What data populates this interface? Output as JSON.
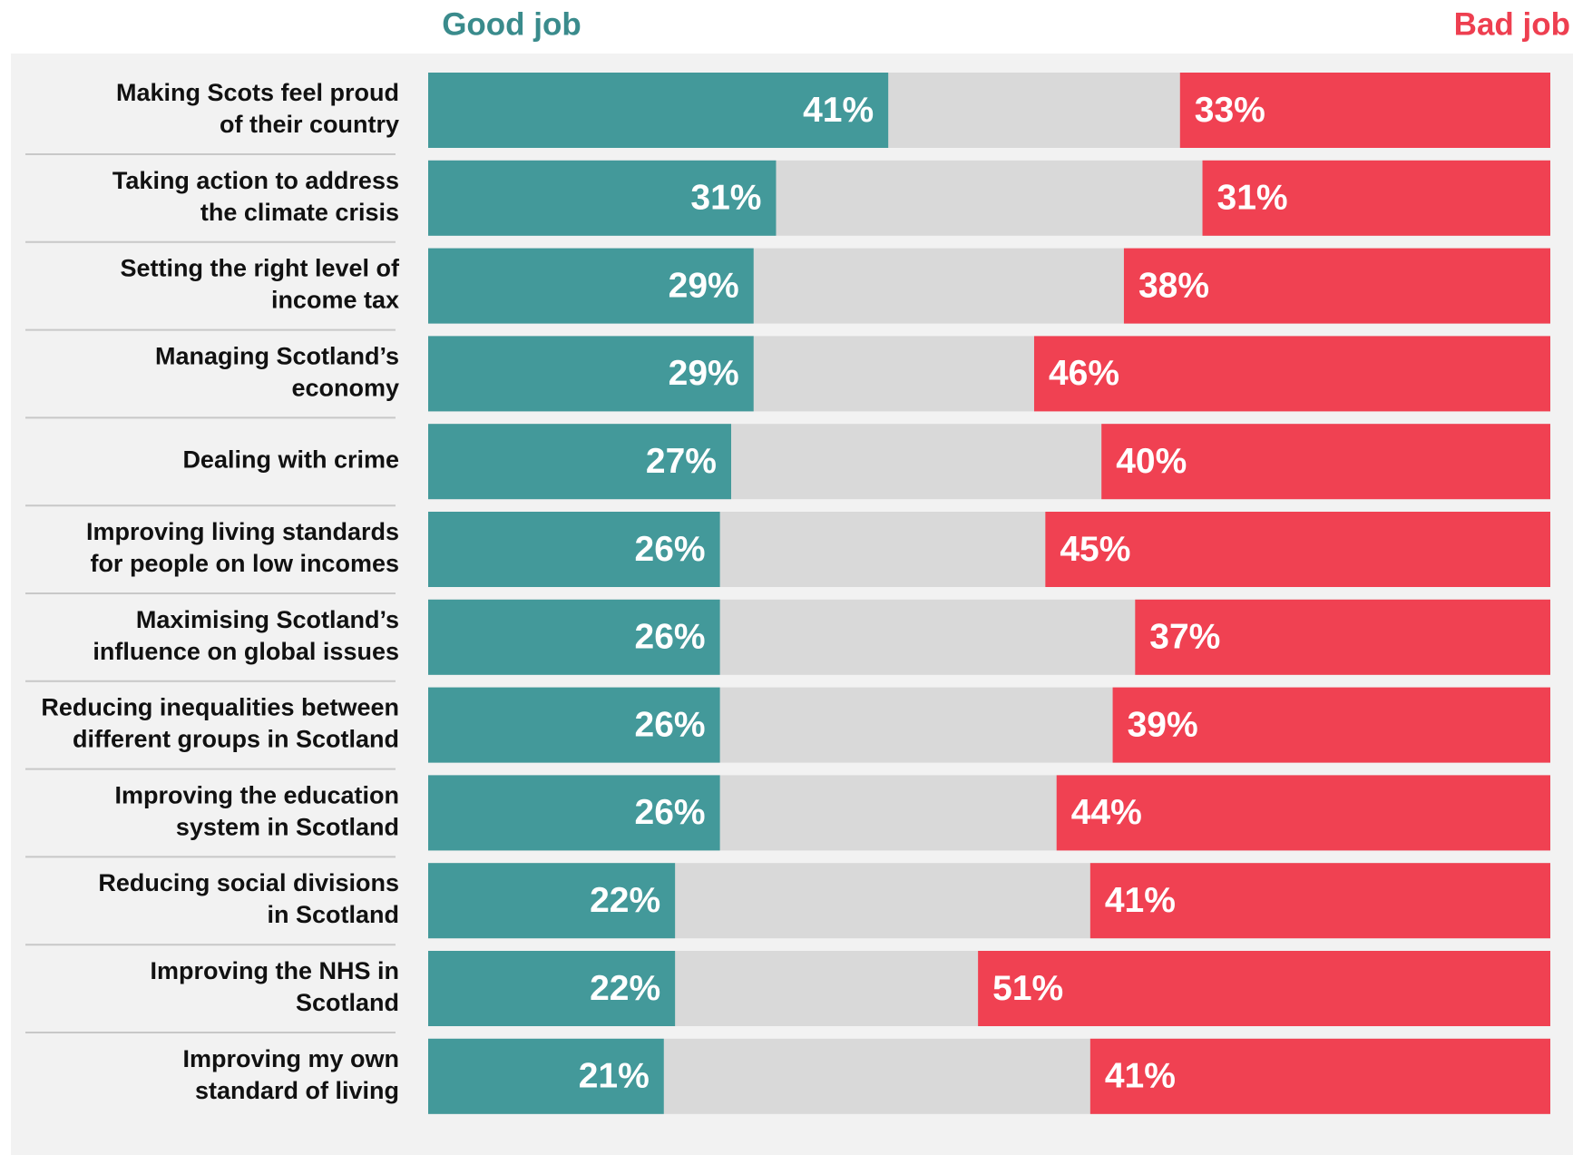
{
  "chart_data": {
    "type": "diverging-bar",
    "categories": [
      "Making Scots feel proud\nof their country",
      "Taking action to address\nthe climate crisis",
      "Setting the right level of\nincome tax",
      "Managing Scotland’s\neconomy",
      "Dealing with crime",
      "Improving living standards\nfor people on low incomes",
      "Maximising Scotland’s\ninfluence on global issues",
      "Reducing inequalities between\ndifferent groups in Scotland",
      "Improving the education\nsystem in Scotland",
      "Reducing social divisions\nin Scotland",
      "Improving the NHS in\nScotland",
      "Improving my own\nstandard of living"
    ],
    "series": [
      {
        "name": "Good job",
        "color": "#43999a",
        "values": [
          41,
          31,
          29,
          29,
          27,
          26,
          26,
          26,
          26,
          22,
          22,
          21
        ],
        "value_labels": [
          "41%",
          "31%",
          "29%",
          "29%",
          "27%",
          "26%",
          "26%",
          "26%",
          "26%",
          "22%",
          "22%",
          "21%"
        ]
      },
      {
        "name": "Bad job",
        "color": "#f04152",
        "values": [
          33,
          31,
          38,
          46,
          40,
          45,
          37,
          39,
          44,
          41,
          51,
          41
        ],
        "value_labels": [
          "33%",
          "31%",
          "38%",
          "46%",
          "40%",
          "45%",
          "37%",
          "39%",
          "44%",
          "41%",
          "51%",
          "41%"
        ]
      }
    ],
    "xlim": [
      0,
      100
    ],
    "remainder_color": "#d9d9d9"
  }
}
